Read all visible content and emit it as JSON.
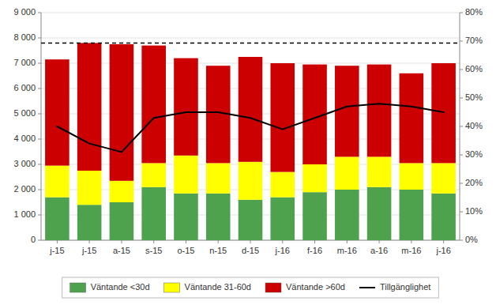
{
  "chart_data": {
    "type": "bar",
    "stacked": true,
    "grid": true,
    "legend": "bottom",
    "categories": [
      "j-15",
      "j-15",
      "a-15",
      "s-15",
      "o-15",
      "n-15",
      "d-15",
      "j-16",
      "f-16",
      "m-16",
      "a-16",
      "m-16",
      "j-16"
    ],
    "series": [
      {
        "name": "Väntande <30d",
        "color": "#4EA24E",
        "values": [
          1700,
          1400,
          1500,
          2100,
          1850,
          1850,
          1600,
          1700,
          1900,
          2000,
          2100,
          2000,
          1850
        ]
      },
      {
        "name": "Väntande 31-60d",
        "color": "#FFFF00",
        "values": [
          1250,
          1350,
          850,
          950,
          1500,
          1200,
          1500,
          1000,
          1100,
          1300,
          1200,
          1050,
          1200
        ]
      },
      {
        "name": "Väntande >60d",
        "color": "#CC0000",
        "values": [
          4200,
          5050,
          5400,
          4650,
          3850,
          3850,
          4150,
          4300,
          3950,
          3600,
          3650,
          3550,
          3950
        ]
      },
      {
        "name": "Tillgänglighet",
        "type": "line",
        "axis": "y2",
        "color": "#000000",
        "values": [
          40,
          34,
          31,
          43,
          45,
          45,
          43,
          39,
          43,
          47,
          48,
          47,
          45
        ]
      }
    ],
    "ylim": [
      0,
      9000
    ],
    "yticks": [
      0,
      {
        "value": 1000,
        "label": "1 000"
      },
      {
        "value": 2000,
        "label": "2 000"
      },
      {
        "value": 3000,
        "label": "3 000"
      },
      {
        "value": 4000,
        "label": "4 000"
      },
      {
        "value": 5000,
        "label": "5 000"
      },
      {
        "value": 6000,
        "label": "6 000"
      },
      {
        "value": 7000,
        "label": "7 000"
      },
      {
        "value": 8000,
        "label": "8 000"
      },
      {
        "value": 9000,
        "label": "9 000"
      }
    ],
    "y2lim": [
      0,
      80
    ],
    "y2ticks": [
      {
        "value": 0,
        "label": "0%"
      },
      {
        "value": 10,
        "label": "10%"
      },
      {
        "value": 20,
        "label": "20%"
      },
      {
        "value": 30,
        "label": "30%"
      },
      {
        "value": 40,
        "label": "40%"
      },
      {
        "value": 50,
        "label": "50%"
      },
      {
        "value": 60,
        "label": "60%"
      },
      {
        "value": 70,
        "label": "70%"
      },
      {
        "value": 80,
        "label": "80%"
      }
    ],
    "reference_line": 7800
  }
}
